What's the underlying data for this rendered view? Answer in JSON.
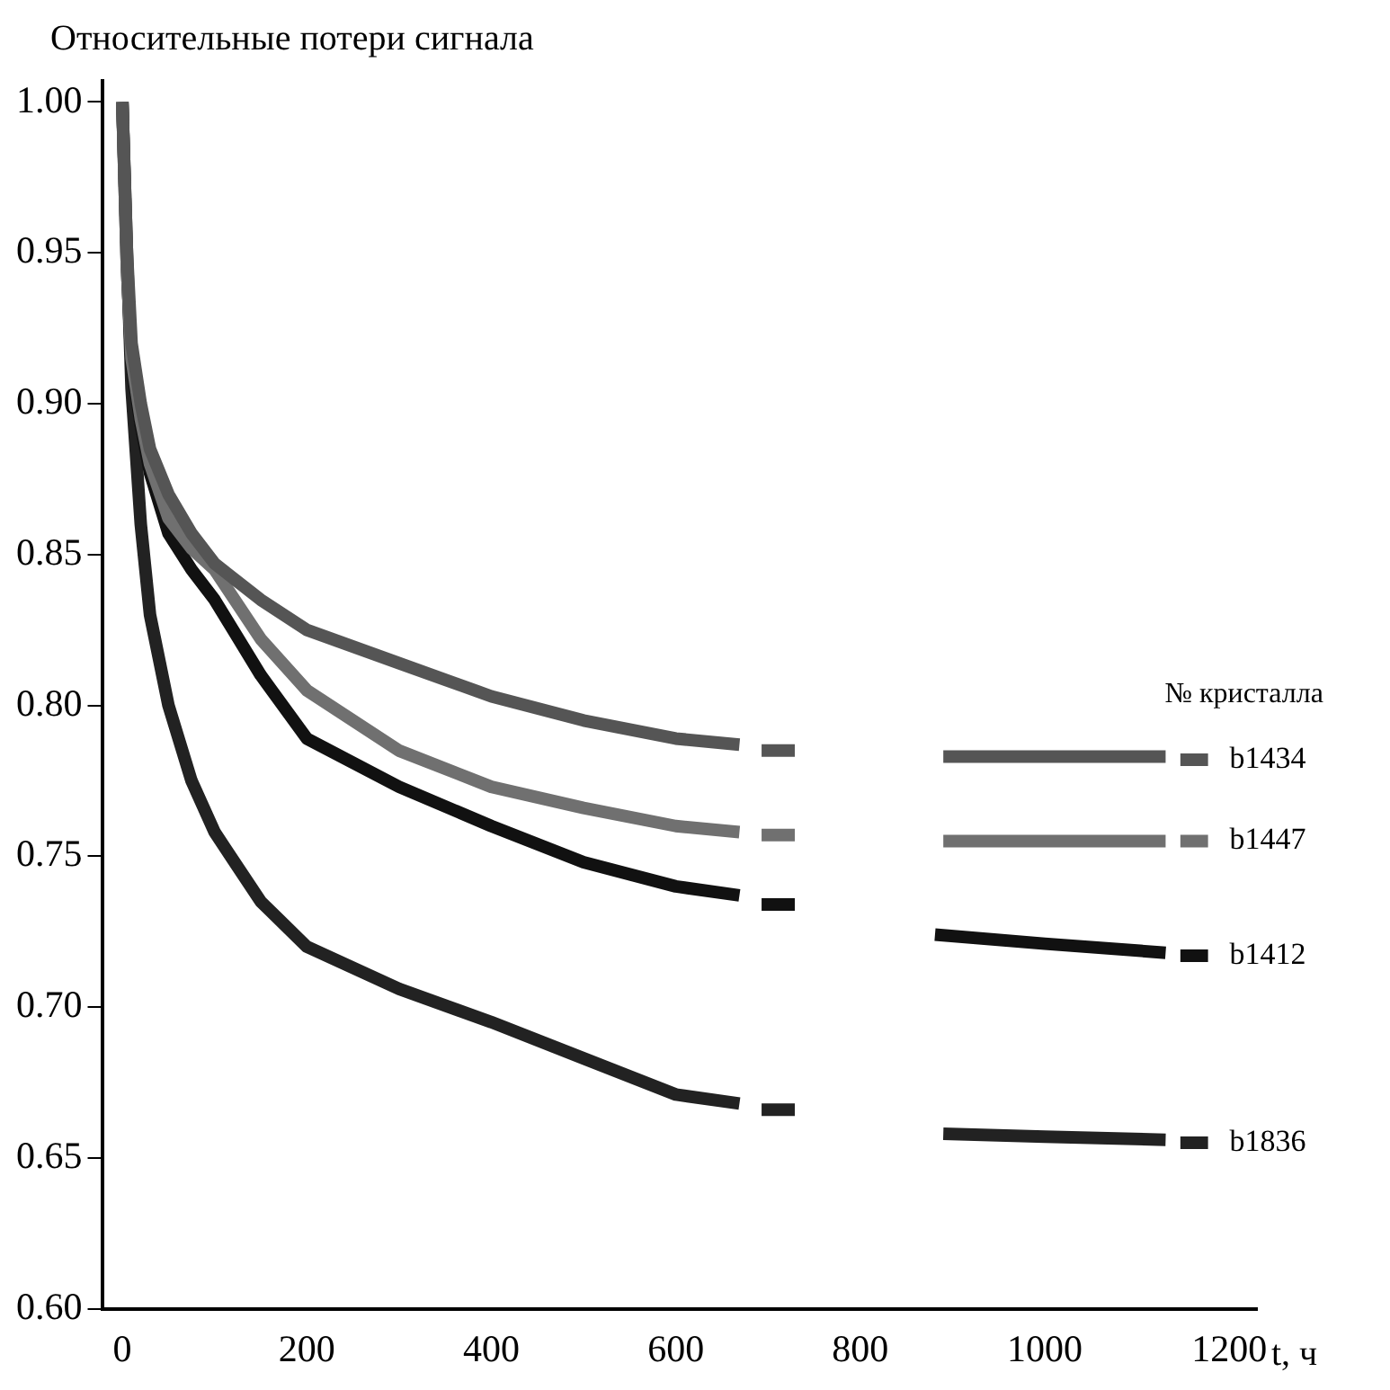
{
  "chart_data": {
    "type": "line",
    "ylabel": "Относительные потери сигнала",
    "xlabel": "t, ч",
    "legend_title": "№ кристалла",
    "xlim": [
      -22,
      1230
    ],
    "ylim": [
      0.6,
      1.007
    ],
    "xticks": [
      0,
      200,
      400,
      600,
      800,
      1000,
      1200
    ],
    "yticks": [
      {
        "value": 0.6,
        "label": "0.60"
      },
      {
        "value": 0.65,
        "label": "0.65"
      },
      {
        "value": 0.7,
        "label": "0.70"
      },
      {
        "value": 0.75,
        "label": "0.75"
      },
      {
        "value": 0.8,
        "label": "0.80"
      },
      {
        "value": 0.85,
        "label": "0.85"
      },
      {
        "value": 0.9,
        "label": "0.90"
      },
      {
        "value": 0.95,
        "label": "0.95"
      },
      {
        "value": 1.0,
        "label": "1.00"
      }
    ],
    "grid": false,
    "marker": "none",
    "line_style": "solid",
    "series": [
      {
        "name": "b1434",
        "color": "#555555",
        "x": [
          0,
          5,
          10,
          20,
          30,
          50,
          75,
          100,
          150,
          200,
          300,
          400,
          500,
          600,
          669,
          680,
          693,
          729,
          800,
          890,
          1000,
          1131,
          1140,
          1147,
          1177
        ],
        "values": [
          1.0,
          0.95,
          0.92,
          0.9,
          0.885,
          0.87,
          0.857,
          0.847,
          0.835,
          0.825,
          0.814,
          0.803,
          0.795,
          0.789,
          0.787,
          null,
          0.785,
          0.785,
          null,
          0.783,
          0.783,
          0.783,
          null,
          0.782,
          0.782
        ]
      },
      {
        "name": "b1447",
        "color": "#707070",
        "x": [
          0,
          5,
          10,
          20,
          30,
          50,
          75,
          100,
          150,
          200,
          300,
          400,
          500,
          600,
          669,
          680,
          693,
          729,
          800,
          890,
          1000,
          1131,
          1140,
          1147,
          1177
        ],
        "values": [
          1.0,
          0.945,
          0.915,
          0.895,
          0.88,
          0.862,
          0.852,
          0.845,
          0.822,
          0.805,
          0.785,
          0.773,
          0.766,
          0.76,
          0.758,
          null,
          0.757,
          0.757,
          null,
          0.755,
          0.755,
          0.755,
          null,
          0.755,
          0.755
        ]
      },
      {
        "name": "b1412",
        "color": "#111111",
        "x": [
          0,
          5,
          10,
          20,
          30,
          50,
          75,
          100,
          150,
          200,
          300,
          400,
          500,
          600,
          669,
          680,
          693,
          729,
          800,
          881,
          1000,
          1131,
          1140,
          1147,
          1177
        ],
        "values": [
          1.0,
          0.945,
          0.913,
          0.893,
          0.877,
          0.857,
          0.845,
          0.835,
          0.81,
          0.789,
          0.773,
          0.76,
          0.748,
          0.74,
          0.737,
          null,
          0.734,
          0.734,
          null,
          0.724,
          0.721,
          0.718,
          null,
          0.717,
          0.717
        ]
      },
      {
        "name": "b1836",
        "color": "#222222",
        "x": [
          0,
          5,
          10,
          20,
          30,
          50,
          75,
          100,
          150,
          200,
          300,
          400,
          500,
          600,
          669,
          680,
          693,
          729,
          800,
          890,
          1000,
          1131,
          1140,
          1147,
          1177
        ],
        "values": [
          1.0,
          0.95,
          0.905,
          0.86,
          0.83,
          0.8,
          0.775,
          0.758,
          0.735,
          0.72,
          0.706,
          0.695,
          0.683,
          0.671,
          0.668,
          null,
          0.666,
          0.666,
          null,
          0.658,
          0.657,
          0.656,
          null,
          0.655,
          0.655
        ]
      }
    ]
  }
}
